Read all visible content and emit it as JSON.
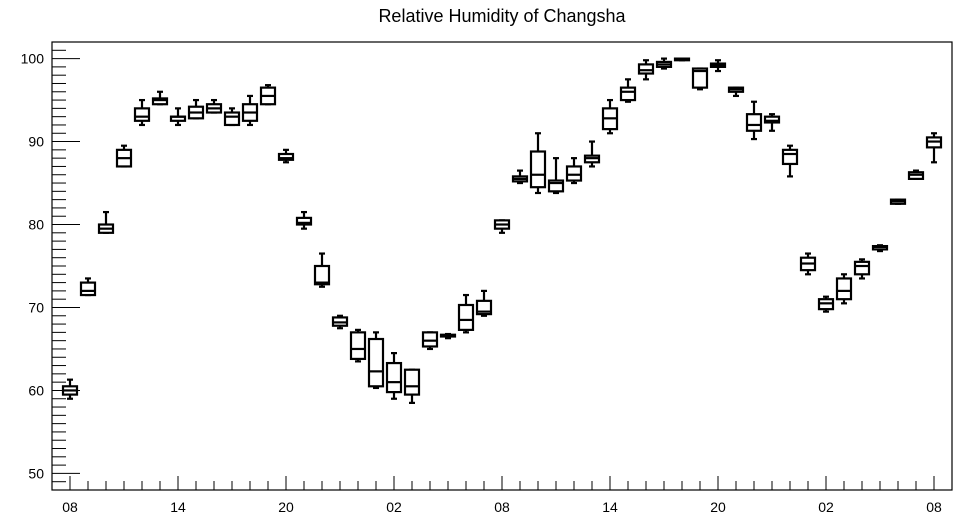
{
  "chart_data": {
    "type": "box",
    "title": "Relative Humidity of Changsha",
    "xlabel": "",
    "ylabel": "",
    "ylim": [
      48,
      102
    ],
    "y_ticks": [
      50,
      60,
      70,
      80,
      90,
      100
    ],
    "x_tick_labels": [
      "08",
      "14",
      "20",
      "02",
      "08",
      "14",
      "20",
      "02",
      "08"
    ],
    "x_tick_hours": [
      0,
      6,
      12,
      18,
      24,
      30,
      36,
      42,
      48
    ],
    "x_start_hour": 8,
    "grid": false,
    "boxes": [
      {
        "hour": 0,
        "min": 59.0,
        "q1": 59.5,
        "median": 60.0,
        "q3": 60.5,
        "max": 61.3
      },
      {
        "hour": 1,
        "min": 71.5,
        "q1": 71.5,
        "median": 72.0,
        "q3": 73.0,
        "max": 73.5
      },
      {
        "hour": 2,
        "min": 79.0,
        "q1": 79.0,
        "median": 79.5,
        "q3": 80.0,
        "max": 81.5
      },
      {
        "hour": 3,
        "min": 87.0,
        "q1": 87.0,
        "median": 88.0,
        "q3": 89.0,
        "max": 89.5
      },
      {
        "hour": 4,
        "min": 92.0,
        "q1": 92.5,
        "median": 93.0,
        "q3": 94.0,
        "max": 95.0
      },
      {
        "hour": 5,
        "min": 94.5,
        "q1": 94.5,
        "median": 95.0,
        "q3": 95.2,
        "max": 96.0
      },
      {
        "hour": 6,
        "min": 92.0,
        "q1": 92.5,
        "median": 93.0,
        "q3": 93.0,
        "max": 94.0
      },
      {
        "hour": 7,
        "min": 92.8,
        "q1": 92.8,
        "median": 93.5,
        "q3": 94.2,
        "max": 95.0
      },
      {
        "hour": 8,
        "min": 93.5,
        "q1": 93.5,
        "median": 94.0,
        "q3": 94.5,
        "max": 95.0
      },
      {
        "hour": 9,
        "min": 92.0,
        "q1": 92.0,
        "median": 93.0,
        "q3": 93.5,
        "max": 94.0
      },
      {
        "hour": 10,
        "min": 92.0,
        "q1": 92.5,
        "median": 93.5,
        "q3": 94.5,
        "max": 95.5
      },
      {
        "hour": 11,
        "min": 94.5,
        "q1": 94.5,
        "median": 95.5,
        "q3": 96.5,
        "max": 96.8
      },
      {
        "hour": 12,
        "min": 87.5,
        "q1": 87.8,
        "median": 88.0,
        "q3": 88.5,
        "max": 89.0
      },
      {
        "hour": 13,
        "min": 79.5,
        "q1": 80.0,
        "median": 80.2,
        "q3": 80.8,
        "max": 81.5
      },
      {
        "hour": 14,
        "min": 72.5,
        "q1": 72.8,
        "median": 73.0,
        "q3": 75.0,
        "max": 76.5
      },
      {
        "hour": 15,
        "min": 67.5,
        "q1": 67.8,
        "median": 68.2,
        "q3": 68.8,
        "max": 69.0
      },
      {
        "hour": 16,
        "min": 63.5,
        "q1": 63.8,
        "median": 65.0,
        "q3": 67.0,
        "max": 67.3
      },
      {
        "hour": 17,
        "min": 60.3,
        "q1": 60.5,
        "median": 62.3,
        "q3": 66.2,
        "max": 67.0
      },
      {
        "hour": 18,
        "min": 59.0,
        "q1": 59.8,
        "median": 61.0,
        "q3": 63.3,
        "max": 64.5
      },
      {
        "hour": 19,
        "min": 58.5,
        "q1": 59.5,
        "median": 60.5,
        "q3": 62.5,
        "max": 62.5
      },
      {
        "hour": 20,
        "min": 65.0,
        "q1": 65.3,
        "median": 66.0,
        "q3": 67.0,
        "max": 67.0
      },
      {
        "hour": 21,
        "min": 66.3,
        "q1": 66.5,
        "median": 66.7,
        "q3": 66.7,
        "max": 66.8
      },
      {
        "hour": 22,
        "min": 67.0,
        "q1": 67.3,
        "median": 68.5,
        "q3": 70.3,
        "max": 71.5
      },
      {
        "hour": 23,
        "min": 69.0,
        "q1": 69.2,
        "median": 69.5,
        "q3": 70.8,
        "max": 72.0
      },
      {
        "hour": 24,
        "min": 79.0,
        "q1": 79.5,
        "median": 80.0,
        "q3": 80.5,
        "max": 80.5
      },
      {
        "hour": 25,
        "min": 85.0,
        "q1": 85.2,
        "median": 85.5,
        "q3": 85.8,
        "max": 86.5
      },
      {
        "hour": 26,
        "min": 83.8,
        "q1": 84.5,
        "median": 86.0,
        "q3": 88.8,
        "max": 91.0
      },
      {
        "hour": 27,
        "min": 83.8,
        "q1": 84.0,
        "median": 85.0,
        "q3": 85.3,
        "max": 88.0
      },
      {
        "hour": 28,
        "min": 85.0,
        "q1": 85.3,
        "median": 86.0,
        "q3": 87.0,
        "max": 88.0
      },
      {
        "hour": 29,
        "min": 87.0,
        "q1": 87.5,
        "median": 88.0,
        "q3": 88.3,
        "max": 90.0
      },
      {
        "hour": 30,
        "min": 91.0,
        "q1": 91.5,
        "median": 92.8,
        "q3": 94.0,
        "max": 95.0
      },
      {
        "hour": 31,
        "min": 94.8,
        "q1": 95.0,
        "median": 96.0,
        "q3": 96.5,
        "max": 97.5
      },
      {
        "hour": 32,
        "min": 97.5,
        "q1": 98.2,
        "median": 98.6,
        "q3": 99.3,
        "max": 99.8
      },
      {
        "hour": 33,
        "min": 98.8,
        "q1": 99.0,
        "median": 99.3,
        "q3": 99.6,
        "max": 100.0
      },
      {
        "hour": 34,
        "min": 99.8,
        "q1": 99.8,
        "median": 99.9,
        "q3": 100.0,
        "max": 100.0
      },
      {
        "hour": 35,
        "min": 96.3,
        "q1": 96.5,
        "median": 98.5,
        "q3": 98.8,
        "max": 98.8
      },
      {
        "hour": 36,
        "min": 98.5,
        "q1": 99.0,
        "median": 99.2,
        "q3": 99.4,
        "max": 99.8
      },
      {
        "hour": 37,
        "min": 95.5,
        "q1": 96.0,
        "median": 96.3,
        "q3": 96.5,
        "max": 96.5
      },
      {
        "hour": 38,
        "min": 90.3,
        "q1": 91.3,
        "median": 92.0,
        "q3": 93.3,
        "max": 94.8
      },
      {
        "hour": 39,
        "min": 91.3,
        "q1": 92.3,
        "median": 92.5,
        "q3": 93.0,
        "max": 93.3
      },
      {
        "hour": 40,
        "min": 85.8,
        "q1": 87.3,
        "median": 88.5,
        "q3": 89.0,
        "max": 89.5
      },
      {
        "hour": 41,
        "min": 74.0,
        "q1": 74.5,
        "median": 75.3,
        "q3": 76.0,
        "max": 76.5
      },
      {
        "hour": 42,
        "min": 69.5,
        "q1": 69.8,
        "median": 70.5,
        "q3": 71.0,
        "max": 71.3
      },
      {
        "hour": 43,
        "min": 70.5,
        "q1": 71.0,
        "median": 72.0,
        "q3": 73.5,
        "max": 74.0
      },
      {
        "hour": 44,
        "min": 73.5,
        "q1": 74.0,
        "median": 75.0,
        "q3": 75.5,
        "max": 75.8
      },
      {
        "hour": 45,
        "min": 76.8,
        "q1": 77.0,
        "median": 77.3,
        "q3": 77.4,
        "max": 77.5
      },
      {
        "hour": 46,
        "min": 82.5,
        "q1": 82.5,
        "median": 82.8,
        "q3": 83.0,
        "max": 83.0
      },
      {
        "hour": 47,
        "min": 85.5,
        "q1": 85.5,
        "median": 86.0,
        "q3": 86.3,
        "max": 86.5
      },
      {
        "hour": 48,
        "min": 87.5,
        "q1": 89.3,
        "median": 90.0,
        "q3": 90.5,
        "max": 91.0
      }
    ]
  }
}
